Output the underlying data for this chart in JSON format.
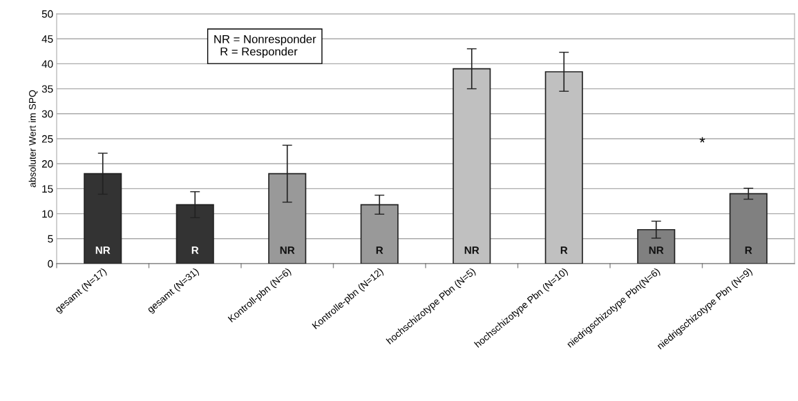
{
  "chart_data": {
    "type": "bar",
    "ylabel": "absoluter Wert im SPQ",
    "categories": [
      "gesamt (N=17)",
      "gesamt (N=31)",
      "Kontroll-pbn (N=6)",
      "Kontrolle-pbn (N=12)",
      "hochschizotype Pbn (N=5)",
      "hochschizotype Pbn (N=10)",
      "niedrigschizotype Pbn(N=6)",
      "niedrigschizotype Pbn (N=9)"
    ],
    "values": [
      18,
      11.8,
      18,
      11.8,
      39,
      38.4,
      6.8,
      14
    ],
    "errors": [
      4.1,
      2.6,
      5.7,
      1.9,
      4,
      3.9,
      1.7,
      1.1
    ],
    "colors": [
      "#333333",
      "#333333",
      "#999999",
      "#999999",
      "#c0c0c0",
      "#c0c0c0",
      "#808080",
      "#808080"
    ],
    "ylim": [
      0,
      50
    ],
    "yticks": [
      0,
      5,
      10,
      15,
      20,
      25,
      30,
      35,
      40,
      45,
      50
    ],
    "grid": "y",
    "annotations": [
      "NR = Nonresponder\n  R = Responder",
      "*",
      "NR",
      "R",
      "NR",
      "R",
      "NR",
      "R",
      "NR",
      "R"
    ]
  }
}
